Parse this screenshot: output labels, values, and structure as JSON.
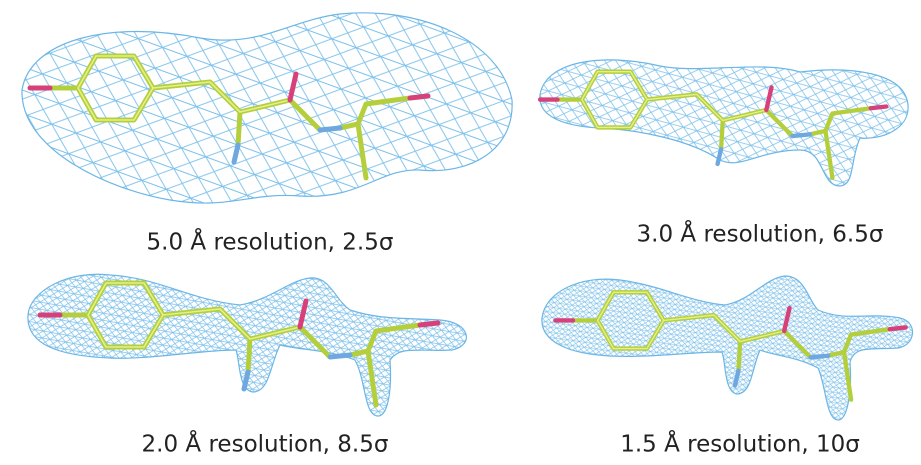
{
  "panels": [
    {
      "caption": "5.0 Å resolution, 2.5σ"
    },
    {
      "caption": "3.0 Å resolution, 6.5σ"
    },
    {
      "caption": "2.0 Å resolution, 8.5σ"
    },
    {
      "caption": "1.5 Å resolution, 10σ"
    }
  ]
}
